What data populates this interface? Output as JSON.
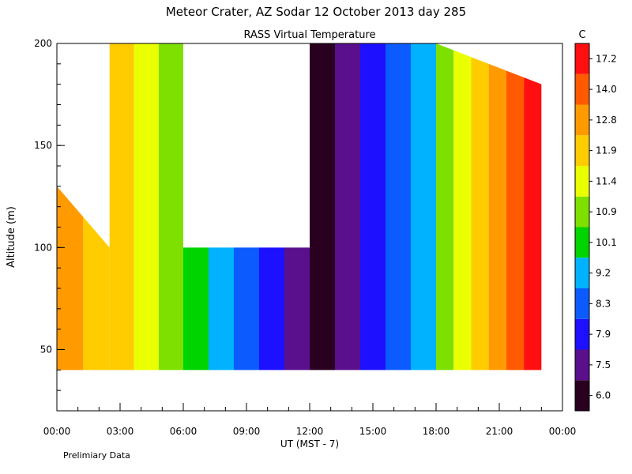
{
  "chart_data": {
    "type": "heatmap",
    "title": "Meteor Crater, AZ   Sodar   12 October 2013   day 285",
    "subtitle": "RASS Virtual Temperature",
    "xlabel": "UT  (MST - 7)",
    "ylabel": "Altitude (m)",
    "colorbar_label": "C",
    "x_ticks": [
      "00:00",
      "03:00",
      "06:00",
      "09:00",
      "12:00",
      "15:00",
      "18:00",
      "21:00",
      "00:00"
    ],
    "x_range_hours": [
      0,
      24
    ],
    "y_ticks": [
      50,
      100,
      150,
      200
    ],
    "y_range": [
      20,
      200
    ],
    "data_floor_altitude": 40,
    "colorbar_ticks": [
      "6.0",
      "7.5",
      "7.9",
      "8.3",
      "9.2",
      "10.1",
      "10.9",
      "11.4",
      "11.9",
      "12.8",
      "14.0",
      "17.2"
    ],
    "colorbar_colors": [
      "#2a0020",
      "#5a0f8c",
      "#1c10ff",
      "#0b5bff",
      "#00b2ff",
      "#00d400",
      "#7ee000",
      "#eaff00",
      "#ffcc00",
      "#ff9a00",
      "#ff5a00",
      "#ff0f0f"
    ],
    "bands": [
      {
        "label": "00:00-02:30",
        "top": [
          130,
          100
        ],
        "levels": [
          9,
          8
        ]
      },
      {
        "label": "02:30-06:00",
        "top": [
          200,
          200
        ],
        "levels": [
          8,
          7,
          6
        ]
      },
      {
        "label": "06:00-12:00",
        "top": [
          100,
          100
        ],
        "levels": [
          5,
          4,
          3,
          2,
          1
        ]
      },
      {
        "label": "12:00-18:00",
        "top": [
          200,
          200
        ],
        "levels": [
          0,
          1,
          2,
          3,
          4
        ]
      },
      {
        "label": "18:00-23:00",
        "top": [
          200,
          180
        ],
        "levels": [
          6,
          7,
          8,
          9,
          10,
          11
        ]
      }
    ],
    "legend_position": "right",
    "grid": false
  },
  "footer_note": "Prelimiary Data"
}
